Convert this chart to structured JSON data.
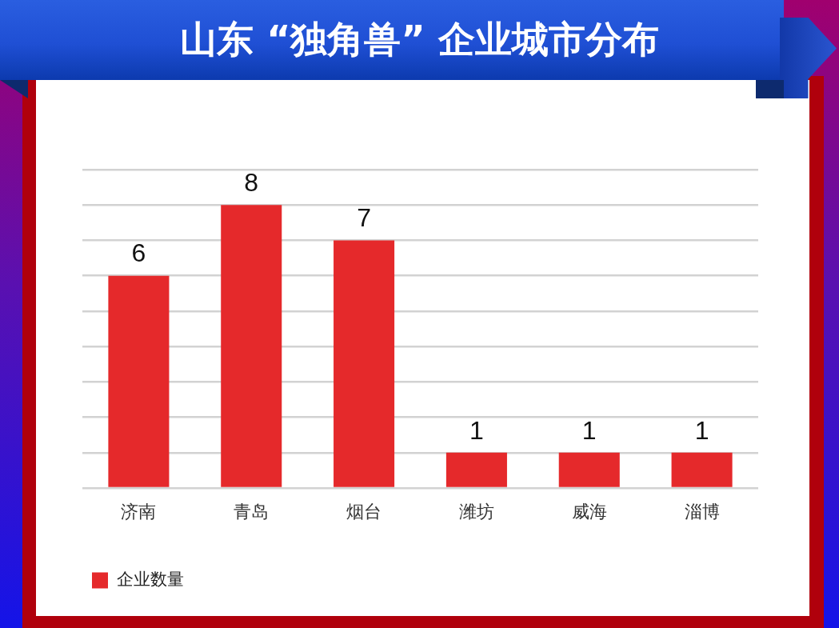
{
  "chart_data": {
    "type": "bar",
    "title": "山东 “独角兽” 企业城市分布",
    "categories": [
      "济南",
      "青岛",
      "烟台",
      "潍坊",
      "威海",
      "淄博"
    ],
    "series": [
      {
        "name": "企业数量",
        "color": "#e5292b",
        "values": [
          6,
          8,
          7,
          1,
          1,
          1
        ]
      }
    ],
    "ylim": [
      0,
      9
    ],
    "yticks": [
      {
        "value": 0,
        "label": null
      },
      {
        "value": 1,
        "label": null
      },
      {
        "value": 2,
        "label": null
      },
      {
        "value": 3,
        "label": null
      },
      {
        "value": 4,
        "label": null
      },
      {
        "value": 5,
        "label": null
      },
      {
        "value": 6,
        "label": null
      },
      {
        "value": 7,
        "label": null
      },
      {
        "value": 8,
        "label": null
      },
      {
        "value": 9,
        "label": null
      }
    ],
    "grid": "y",
    "legend": "bottom left",
    "tick_labels": "x",
    "data_labels": true
  }
}
